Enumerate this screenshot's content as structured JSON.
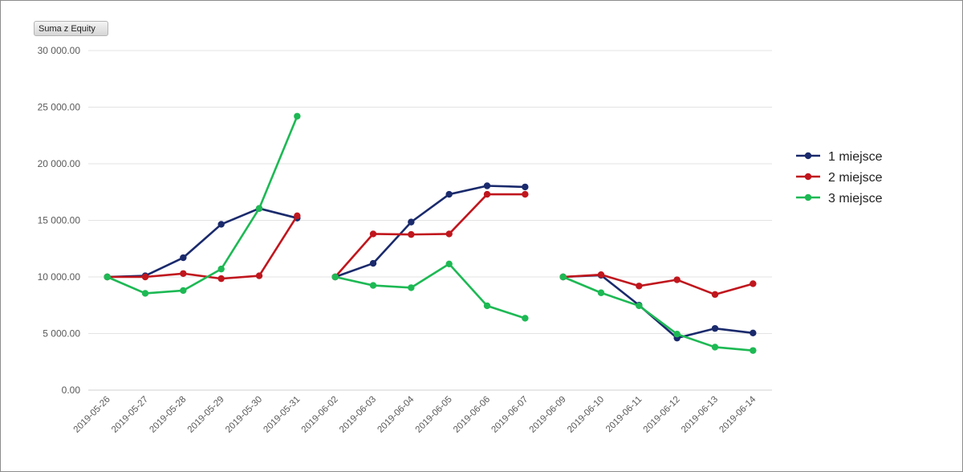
{
  "field_button": {
    "label": "Suma z Equity"
  },
  "chart_data": {
    "type": "line",
    "title": "",
    "xlabel": "",
    "ylabel": "",
    "ylim": [
      0,
      30000
    ],
    "yticks": [
      0,
      5000,
      10000,
      15000,
      20000,
      25000,
      30000
    ],
    "ytick_labels": [
      "0.00",
      "5 000.00",
      "10 000.00",
      "15 000.00",
      "20 000.00",
      "25 000.00",
      "30 000.00"
    ],
    "grid": true,
    "legend_position": "right",
    "categories": [
      "2019-05-26",
      "2019-05-27",
      "2019-05-28",
      "2019-05-29",
      "2019-05-30",
      "2019-05-31",
      "2019-06-02",
      "2019-06-03",
      "2019-06-04",
      "2019-06-05",
      "2019-06-06",
      "2019-06-07",
      "2019-06-09",
      "2019-06-10",
      "2019-06-11",
      "2019-06-12",
      "2019-06-13",
      "2019-06-14"
    ],
    "segments": [
      [
        0,
        5
      ],
      [
        6,
        11
      ],
      [
        12,
        17
      ]
    ],
    "series": [
      {
        "name": "1 miejsce",
        "color": "#1a2a6c",
        "values": [
          10000,
          10100,
          11700,
          14650,
          16050,
          15200,
          10000,
          11200,
          14850,
          17300,
          18050,
          17950,
          10000,
          10150,
          7500,
          4600,
          5450,
          5050
        ]
      },
      {
        "name": "2 miejsce",
        "color": "#c0161d",
        "values": [
          10000,
          10000,
          10300,
          9850,
          10100,
          15400,
          10000,
          13800,
          13750,
          13800,
          17300,
          17300,
          10000,
          10200,
          9200,
          9750,
          8450,
          9400
        ]
      },
      {
        "name": "3 miejsce",
        "color": "#1db954",
        "values": [
          10000,
          8550,
          8800,
          10700,
          16050,
          24200,
          10000,
          9250,
          9050,
          11150,
          7450,
          6350,
          10000,
          8600,
          7450,
          4950,
          3800,
          3500
        ]
      }
    ]
  }
}
